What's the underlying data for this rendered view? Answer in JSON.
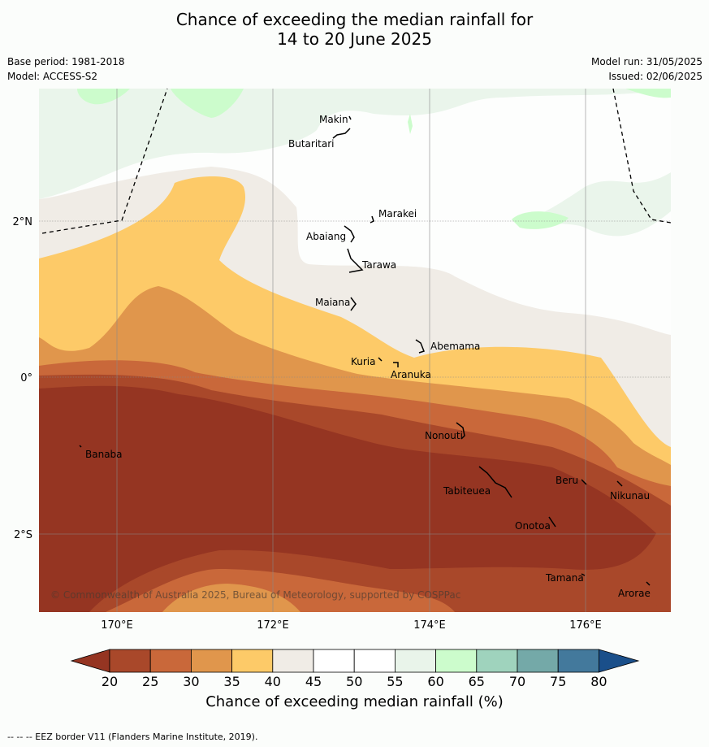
{
  "title_line1": "Chance of exceeding the median rainfall for",
  "title_line2": "14 to 20 June 2025",
  "base_period": "Base period: 1981-2018",
  "model": "Model: ACCESS-S2",
  "model_run": "Model run: 31/05/2025",
  "issued": "Issued: 02/06/2025",
  "lat_labels": [
    "2°N",
    "0°",
    "2°S"
  ],
  "lon_labels": [
    "170°E",
    "172°E",
    "174°E",
    "176°E"
  ],
  "places": [
    "Makin",
    "Butaritari",
    "Marakei",
    "Abaiang",
    "Tarawa",
    "Maiana",
    "Abemama",
    "Kuria",
    "Aranuka",
    "Nonouti",
    "Banaba",
    "Beru",
    "Nikunau",
    "Tabiteuea",
    "Onotoa",
    "Tamana",
    "Arorae"
  ],
  "copyright": "© Commonwealth of Australia 2025, Bureau of Meteorology, supported by COSPPac",
  "colorbar": {
    "ticks": [
      "20",
      "25",
      "30",
      "35",
      "40",
      "45",
      "50",
      "55",
      "60",
      "65",
      "70",
      "75",
      "80"
    ],
    "colors": [
      "#a9482a",
      "#c9683a",
      "#e0964c",
      "#fdca68",
      "#f0ece6",
      "#ffffff",
      "#ffffff",
      "#e9f4ea",
      "#ccfccc",
      "#9fd3bd",
      "#74a9a8",
      "#43799c"
    ],
    "below_color": "#953522",
    "above_color": "#1a4f8a",
    "title": "Chance of exceeding median rainfall (%)"
  },
  "footer": "--  --  -- EEZ border V11 (Flanders Marine Institute, 2019)."
}
